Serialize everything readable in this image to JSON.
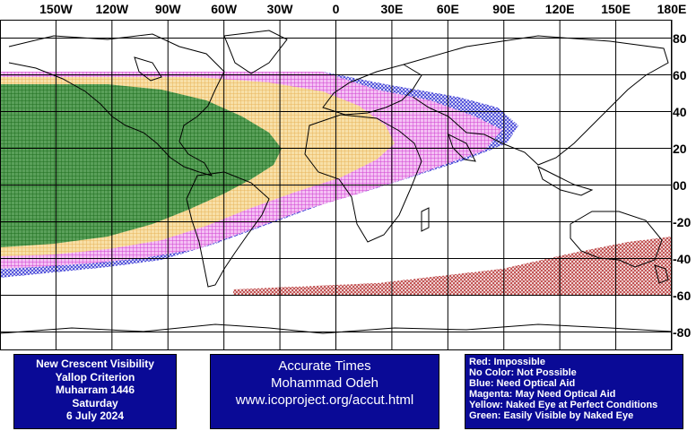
{
  "axes": {
    "longitude_labels": [
      "150W",
      "120W",
      "90W",
      "60W",
      "30W",
      "0",
      "30E",
      "60E",
      "90E",
      "120E",
      "150E",
      "180E"
    ],
    "longitudes": [
      -150,
      -120,
      -90,
      -60,
      -30,
      0,
      30,
      60,
      90,
      120,
      150,
      180
    ],
    "latitude_labels": [
      "80",
      "60",
      "40",
      "20",
      "00",
      "-20",
      "-40",
      "-60",
      "-80"
    ],
    "latitudes": [
      80,
      60,
      40,
      20,
      0,
      -20,
      -40,
      -60,
      -80
    ],
    "lon_range": [
      -180,
      180
    ],
    "lat_range": [
      -90,
      90
    ]
  },
  "info_panel": {
    "title": "New Crescent Visibility",
    "criterion": "Yallop Criterion",
    "month": "Muharram 1446",
    "weekday": "Saturday",
    "date": "6 July 2024"
  },
  "credit_panel": {
    "line1": "Accurate Times",
    "line2": "Mohammad Odeh",
    "line3": "www.icoproject.org/accut.html"
  },
  "legend": [
    {
      "label": "Red: Impossible",
      "color": "#b40000"
    },
    {
      "label": "No Color: Not Possible",
      "color": ""
    },
    {
      "label": "Blue: Need Optical Aid",
      "color": "#0000c8"
    },
    {
      "label": "Magenta: May Need Optical Aid",
      "color": "#e000e0"
    },
    {
      "label": "Yellow: Naked Eye at Perfect Conditions",
      "color": "#f0c040"
    },
    {
      "label": "Green: Easily Visible by Naked Eye",
      "color": "#207020"
    }
  ],
  "colors": {
    "panel_background": "#0a0a96",
    "green_fill": "#5aa05a",
    "green_grid": "#1e6e1e",
    "yellow_fill": "#f6d894",
    "magenta_fill": "#f0a0f0",
    "blue_fill": "#7070ff",
    "red_dots": "#b02020"
  }
}
